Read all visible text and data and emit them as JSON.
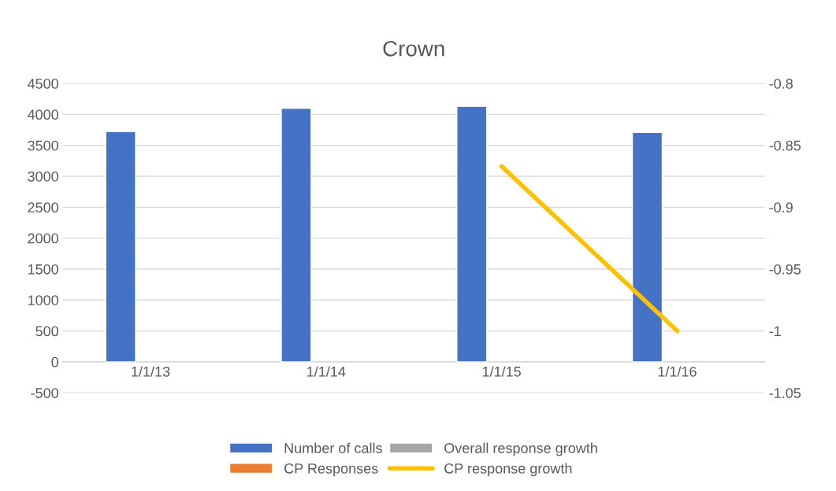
{
  "chart_data": {
    "type": "bar",
    "title": "Crown",
    "categories": [
      "1/1/13",
      "1/1/14",
      "1/1/15",
      "1/1/16"
    ],
    "series": [
      {
        "name": "Number of calls",
        "color": "#4472c4",
        "values": [
          3720,
          4100,
          4130,
          3710
        ]
      },
      {
        "name": "CP Responses",
        "color": "#ed7d31",
        "values": [
          null,
          null,
          null,
          null
        ]
      },
      {
        "name": "Overall response growth",
        "color": "#a5a5a5",
        "values": [
          null,
          null,
          null,
          null
        ]
      },
      {
        "name": "CP response growth",
        "color": "#ffc000",
        "type": "line",
        "axis": "y2",
        "values": [
          null,
          null,
          -0.867,
          -1.0
        ]
      }
    ],
    "ylim": [
      -500,
      4500
    ],
    "yticks": [
      -500,
      0,
      500,
      1000,
      1500,
      2000,
      2500,
      3000,
      3500,
      4000,
      4500
    ],
    "y2lim": [
      -1.05,
      -0.8
    ],
    "y2ticks": [
      -1.05,
      -1,
      -0.95,
      -0.9,
      -0.85,
      -0.8
    ],
    "grid": "y",
    "legend": "bottom"
  }
}
